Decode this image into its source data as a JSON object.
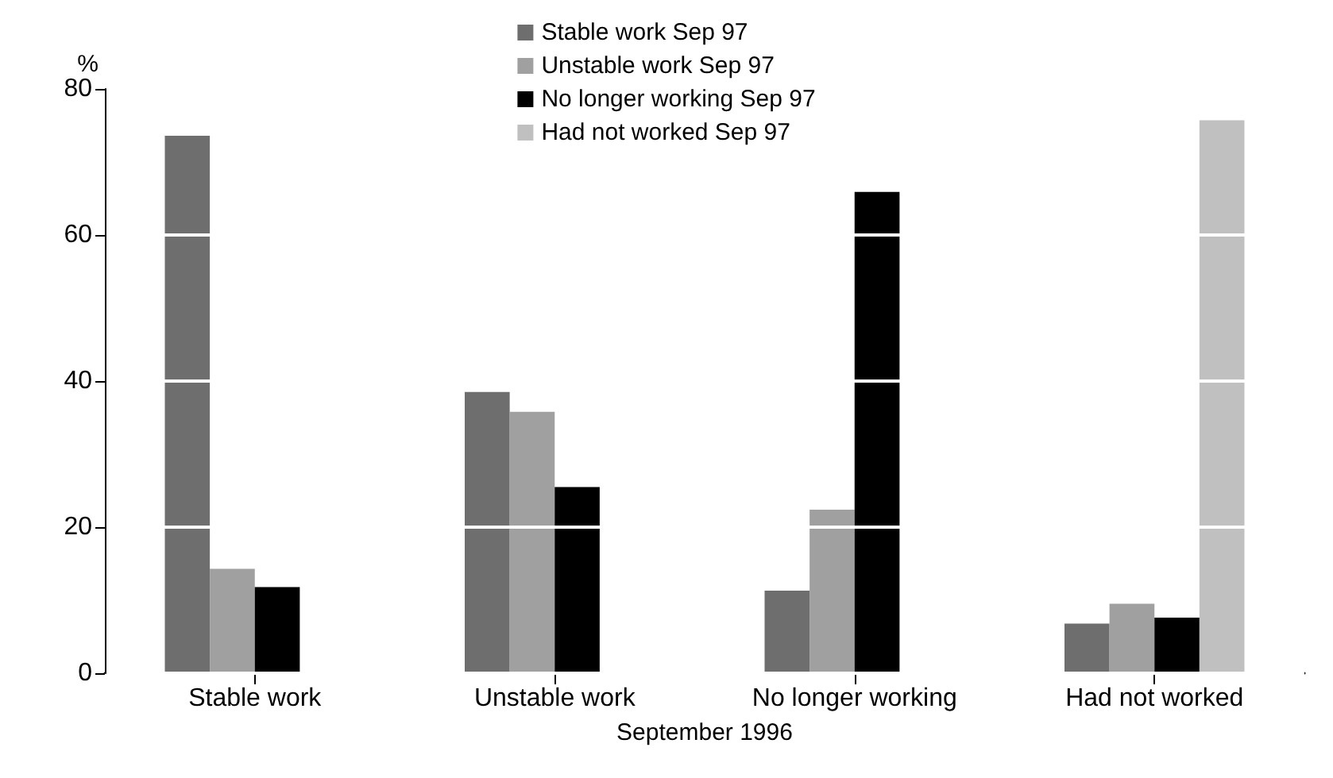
{
  "chart_data": {
    "type": "bar",
    "ylabel": "%",
    "xlabel": "September 1996",
    "categories": [
      "Stable work",
      "Unstable work",
      "No longer working",
      "Had not worked"
    ],
    "series": [
      {
        "name": "Stable work Sep 97",
        "color": "#6e6e6e",
        "values": [
          73.6,
          38.5,
          11.3,
          6.8
        ]
      },
      {
        "name": "Unstable work Sep 97",
        "color": "#a0a0a0",
        "values": [
          14.3,
          35.8,
          22.4,
          9.5
        ]
      },
      {
        "name": "No longer working Sep 97",
        "color": "#000000",
        "values": [
          11.8,
          25.5,
          65.9,
          7.6
        ]
      },
      {
        "name": "Had not worked Sep 97",
        "color": "#c0c0c0",
        "values": [
          null,
          null,
          null,
          75.7
        ]
      }
    ],
    "ylim": [
      0,
      80
    ],
    "yticks": [
      0,
      20,
      40,
      60,
      80
    ],
    "grid": "y",
    "legend": "top"
  }
}
